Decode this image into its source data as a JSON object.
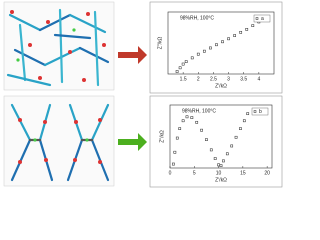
{
  "chart_data": [
    {
      "type": "scatter",
      "annotation": "98%RH, 100°C",
      "xlabel": "Z'/kΩ",
      "ylabel": "Z''/kΩ",
      "xlim": [
        1.0,
        4.5
      ],
      "xticks": [
        1.5,
        2.0,
        2.5,
        3.0,
        3.5,
        4.0
      ],
      "ylim": [
        0,
        2.5
      ],
      "series": [
        {
          "name": "a",
          "color": "#222222",
          "x": [
            1.3,
            1.4,
            1.5,
            1.6,
            1.8,
            2.0,
            2.2,
            2.4,
            2.6,
            2.8,
            3.0,
            3.2,
            3.4,
            3.6,
            3.8,
            4.0,
            4.1
          ],
          "values": [
            0.1,
            0.25,
            0.4,
            0.5,
            0.65,
            0.8,
            0.92,
            1.05,
            1.18,
            1.3,
            1.42,
            1.55,
            1.68,
            1.8,
            1.95,
            2.1,
            2.2
          ]
        }
      ]
    },
    {
      "type": "scatter",
      "annotation": "98%RH, 100°C",
      "xlabel": "Z'/kΩ",
      "ylabel": "Z''/kΩ",
      "xlim": [
        0,
        21
      ],
      "xticks": [
        0,
        5,
        10,
        15,
        20
      ],
      "ylim": [
        0,
        8
      ],
      "series": [
        {
          "name": "b",
          "color": "#222222",
          "x": [
            0.7,
            1,
            1.5,
            2,
            2.7,
            3.5,
            4.5,
            5.5,
            6.5,
            7.5,
            8.5,
            9.3,
            10,
            10.5,
            11,
            11.8,
            12.7,
            13.6,
            14.5,
            15.3,
            16
          ],
          "values": [
            0.5,
            2,
            3.8,
            5,
            6,
            6.5,
            6.4,
            5.8,
            4.8,
            3.6,
            2.3,
            1.2,
            0.4,
            0.3,
            0.9,
            1.8,
            2.8,
            3.9,
            5,
            6,
            6.9
          ]
        }
      ]
    }
  ]
}
